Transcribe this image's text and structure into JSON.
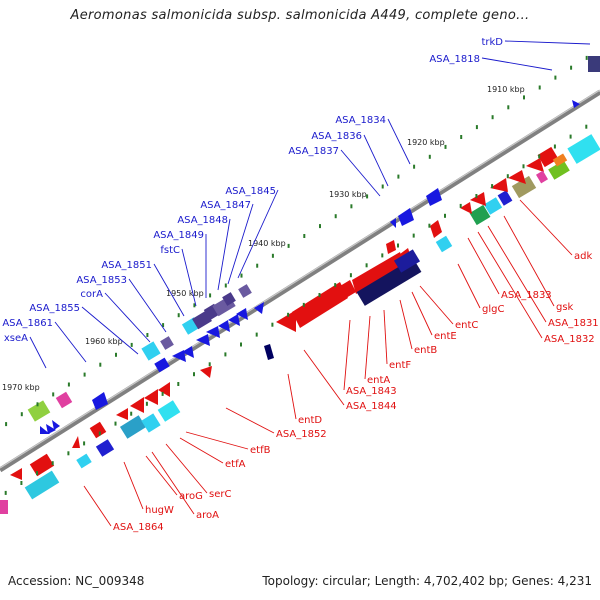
{
  "title": "Aeromonas salmonicida subsp. salmonicida A449, complete geno...",
  "footer": {
    "accession": "Accession: NC_009348",
    "topology": "Topology: circular; Length: 4,702,402 bp; Genes: 4,231"
  },
  "colors": {
    "background": "#ffffff",
    "backbone": "#808080",
    "forward_label": "#1a1acc",
    "reverse_label": "#e01010",
    "tick_mark": "#2a7a2a"
  },
  "kbp_ticks": [
    "1910 kbp",
    "1920 kbp",
    "1930 kbp",
    "1940 kbp",
    "1950 kbp",
    "1960 kbp",
    "1970 kbp"
  ],
  "forward_labels": [
    "trkD",
    "ASA_1818",
    "ASA_1834",
    "ASA_1836",
    "ASA_1837",
    "ASA_1845",
    "ASA_1847",
    "ASA_1848",
    "ASA_1849",
    "fstC",
    "ASA_1851",
    "ASA_1853",
    "corA",
    "ASA_1855",
    "ASA_1861",
    "xseA"
  ],
  "reverse_labels": [
    "adk",
    "gsk",
    "ASA_1831",
    "ASA_1832",
    "ASA_1833",
    "glgC",
    "entC",
    "entE",
    "entB",
    "entF",
    "entA",
    "ASA_1843",
    "ASA_1844",
    "entD",
    "ASA_1852",
    "etfB",
    "etfA",
    "serC",
    "aroA",
    "aroG",
    "hugW",
    "ASA_1864"
  ]
}
